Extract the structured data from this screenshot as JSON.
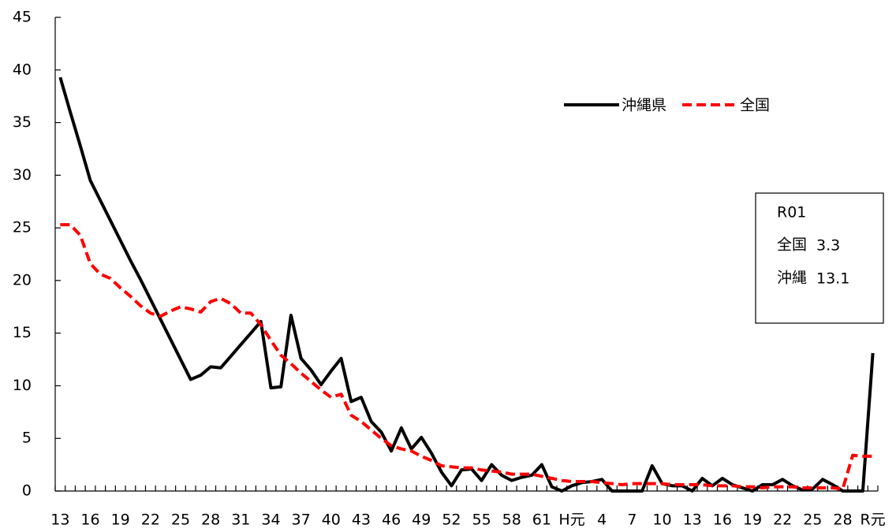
{
  "chart_data": {
    "type": "line",
    "categories": [
      "13",
      null,
      null,
      "16",
      null,
      null,
      "19",
      null,
      null,
      "22",
      null,
      null,
      "25",
      null,
      null,
      "28",
      null,
      null,
      "31",
      null,
      null,
      "34",
      null,
      null,
      "37",
      null,
      null,
      "40",
      null,
      null,
      "43",
      null,
      null,
      "46",
      null,
      null,
      "49",
      null,
      null,
      "52",
      null,
      null,
      "55",
      null,
      null,
      "58",
      null,
      null,
      "61",
      null,
      null,
      "H元",
      null,
      null,
      "4",
      null,
      null,
      "7",
      null,
      null,
      "10",
      null,
      null,
      "13",
      null,
      null,
      "16",
      null,
      null,
      "19",
      null,
      null,
      "22",
      null,
      null,
      "25",
      null,
      null,
      "28",
      null,
      null,
      "R元"
    ],
    "series": [
      {
        "name": "沖縄県",
        "color": "#000000",
        "dash": false,
        "values": [
          39.3,
          36.0,
          32.8,
          29.5,
          27.6,
          25.7,
          23.8,
          21.9,
          20.1,
          18.2,
          16.3,
          14.4,
          12.5,
          10.6,
          11.0,
          11.8,
          11.7,
          12.8,
          13.9,
          15.0,
          16.1,
          9.8,
          9.9,
          16.7,
          12.6,
          11.5,
          10.1,
          11.4,
          12.6,
          8.5,
          8.9,
          6.6,
          5.6,
          3.8,
          6.0,
          4.0,
          5.1,
          3.6,
          1.8,
          0.5,
          2.0,
          2.1,
          1.0,
          2.5,
          1.5,
          1.0,
          1.3,
          1.5,
          2.5,
          0.4,
          0.0,
          0.5,
          0.8,
          0.9,
          1.1,
          0.0,
          0.0,
          0.0,
          0.0,
          2.4,
          0.7,
          0.5,
          0.5,
          0.0,
          1.2,
          0.5,
          1.2,
          0.6,
          0.3,
          0.0,
          0.6,
          0.6,
          1.1,
          0.5,
          0.1,
          0.2,
          1.1,
          0.6,
          0.0,
          0.0,
          0.0,
          13.1
        ]
      },
      {
        "name": "全国",
        "color": "#ff0000",
        "dash": true,
        "values": [
          25.3,
          25.3,
          24.3,
          21.6,
          20.6,
          20.2,
          19.3,
          18.5,
          17.6,
          16.9,
          16.6,
          17.1,
          17.5,
          17.3,
          17.0,
          18.0,
          18.3,
          17.8,
          16.9,
          16.9,
          15.8,
          14.3,
          12.9,
          12.1,
          11.2,
          10.4,
          9.6,
          8.9,
          9.2,
          7.2,
          6.6,
          5.8,
          5.0,
          4.3,
          4.0,
          3.8,
          3.3,
          2.9,
          2.4,
          2.3,
          2.2,
          2.2,
          2.0,
          1.9,
          1.8,
          1.6,
          1.6,
          1.6,
          1.4,
          1.2,
          1.0,
          0.9,
          0.9,
          0.9,
          0.8,
          0.7,
          0.6,
          0.7,
          0.7,
          0.7,
          0.7,
          0.6,
          0.6,
          0.6,
          0.6,
          0.5,
          0.5,
          0.5,
          0.4,
          0.4,
          0.3,
          0.4,
          0.4,
          0.4,
          0.3,
          0.3,
          0.3,
          0.3,
          0.2,
          3.4,
          3.3,
          3.3
        ]
      }
    ],
    "ylim": [
      0,
      45
    ],
    "yticks": [
      0,
      5,
      10,
      15,
      20,
      25,
      30,
      35,
      40,
      45
    ],
    "grid": false,
    "legend": "top-right",
    "annotation": {
      "title": "R01",
      "color": "#ff0000",
      "rows": [
        {
          "label": "全国",
          "value": 3.3
        },
        {
          "label": "沖縄",
          "value": 13.1
        }
      ]
    }
  }
}
